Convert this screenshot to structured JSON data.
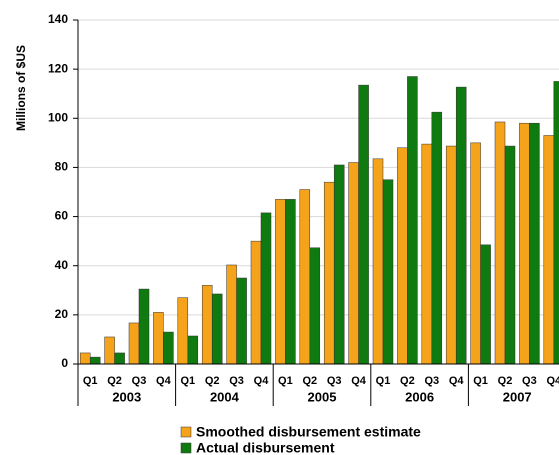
{
  "chart_data": {
    "type": "bar",
    "y_label": "Millions of $US",
    "categories": [
      "Q1",
      "Q2",
      "Q3",
      "Q4",
      "Q1",
      "Q2",
      "Q3",
      "Q4",
      "Q1",
      "Q2",
      "Q3",
      "Q4",
      "Q1",
      "Q2",
      "Q3",
      "Q4",
      "Q1",
      "Q2",
      "Q3",
      "Q4"
    ],
    "years": [
      "2003",
      "2004",
      "2005",
      "2006",
      "2007"
    ],
    "series": [
      {
        "name": "Smoothed disbursement estimate",
        "color": "#f5a31a",
        "values": [
          4.5,
          11,
          16.7,
          21,
          27,
          32,
          40.3,
          50,
          67,
          71,
          74,
          82,
          83.5,
          88,
          89.5,
          88.7,
          90,
          98.5,
          98,
          93
        ]
      },
      {
        "name": "Actual disbursement",
        "color": "#0f7a0f",
        "values": [
          2.8,
          4.5,
          30.5,
          13,
          11.4,
          28.5,
          35,
          61.5,
          67,
          47.3,
          81,
          113.5,
          75,
          117,
          102.5,
          112.7,
          48.5,
          88.7,
          98,
          115
        ]
      }
    ],
    "ylim": [
      0,
      140
    ],
    "yticks": [
      0,
      20,
      40,
      60,
      80,
      100,
      120,
      140
    ],
    "grid": true
  }
}
